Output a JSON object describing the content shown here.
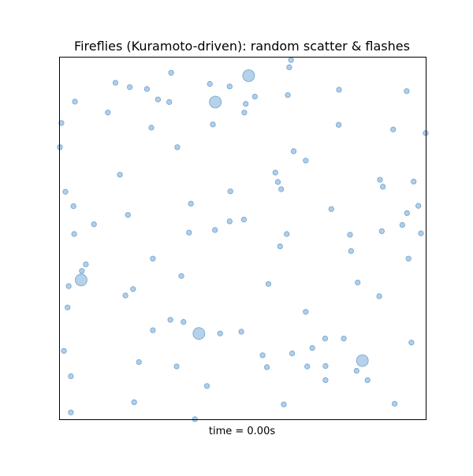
{
  "chart_data": {
    "type": "scatter",
    "title": "Fireflies (Kuramoto-driven): random scatter & flashes",
    "xlabel": "time = 0.00s",
    "ylabel": "",
    "xlim": [
      0,
      1
    ],
    "ylim": [
      0,
      1
    ],
    "grid": false,
    "ticks": false,
    "colors": {
      "marker": "#a9c9e6",
      "edge": "#6fa3d0"
    },
    "series": [
      {
        "points": [
          {
            "x": 0.632,
            "y": 0.993
          },
          {
            "x": 0.627,
            "y": 0.973
          },
          {
            "x": 0.516,
            "y": 0.95,
            "flash": true
          },
          {
            "x": 0.304,
            "y": 0.958
          },
          {
            "x": 0.152,
            "y": 0.93
          },
          {
            "x": 0.191,
            "y": 0.918
          },
          {
            "x": 0.238,
            "y": 0.913
          },
          {
            "x": 0.41,
            "y": 0.927
          },
          {
            "x": 0.464,
            "y": 0.92
          },
          {
            "x": 0.763,
            "y": 0.911
          },
          {
            "x": 0.948,
            "y": 0.907
          },
          {
            "x": 0.041,
            "y": 0.878
          },
          {
            "x": 0.533,
            "y": 0.892
          },
          {
            "x": 0.623,
            "y": 0.896
          },
          {
            "x": 0.268,
            "y": 0.884
          },
          {
            "x": 0.299,
            "y": 0.877
          },
          {
            "x": 0.425,
            "y": 0.877,
            "flash": true
          },
          {
            "x": 0.508,
            "y": 0.872
          },
          {
            "x": 0.131,
            "y": 0.848
          },
          {
            "x": 0.504,
            "y": 0.848
          },
          {
            "x": 0.004,
            "y": 0.819
          },
          {
            "x": 0.25,
            "y": 0.806
          },
          {
            "x": 0.418,
            "y": 0.815
          },
          {
            "x": 0.762,
            "y": 0.814
          },
          {
            "x": 0.911,
            "y": 0.801
          },
          {
            "x": 1.0,
            "y": 0.791
          },
          {
            "x": 0.0,
            "y": 0.752
          },
          {
            "x": 0.321,
            "y": 0.752
          },
          {
            "x": 0.639,
            "y": 0.741
          },
          {
            "x": 0.672,
            "y": 0.715
          },
          {
            "x": 0.164,
            "y": 0.676
          },
          {
            "x": 0.589,
            "y": 0.682
          },
          {
            "x": 0.596,
            "y": 0.656
          },
          {
            "x": 0.605,
            "y": 0.636
          },
          {
            "x": 0.875,
            "y": 0.662
          },
          {
            "x": 0.883,
            "y": 0.643
          },
          {
            "x": 0.967,
            "y": 0.657
          },
          {
            "x": 0.015,
            "y": 0.629
          },
          {
            "x": 0.466,
            "y": 0.63
          },
          {
            "x": 0.037,
            "y": 0.589
          },
          {
            "x": 0.358,
            "y": 0.596
          },
          {
            "x": 0.742,
            "y": 0.581
          },
          {
            "x": 0.98,
            "y": 0.59
          },
          {
            "x": 0.186,
            "y": 0.565
          },
          {
            "x": 0.949,
            "y": 0.57
          },
          {
            "x": 0.093,
            "y": 0.539
          },
          {
            "x": 0.464,
            "y": 0.547
          },
          {
            "x": 0.503,
            "y": 0.552
          },
          {
            "x": 0.936,
            "y": 0.537
          },
          {
            "x": 0.424,
            "y": 0.523
          },
          {
            "x": 0.353,
            "y": 0.516
          },
          {
            "x": 0.039,
            "y": 0.512
          },
          {
            "x": 0.62,
            "y": 0.512
          },
          {
            "x": 0.88,
            "y": 0.52
          },
          {
            "x": 0.987,
            "y": 0.514
          },
          {
            "x": 0.793,
            "y": 0.51
          },
          {
            "x": 0.602,
            "y": 0.478
          },
          {
            "x": 0.796,
            "y": 0.465
          },
          {
            "x": 0.953,
            "y": 0.444
          },
          {
            "x": 0.071,
            "y": 0.428
          },
          {
            "x": 0.254,
            "y": 0.444
          },
          {
            "x": 0.06,
            "y": 0.41
          },
          {
            "x": 0.058,
            "y": 0.385,
            "flash": true
          },
          {
            "x": 0.332,
            "y": 0.396
          },
          {
            "x": 0.57,
            "y": 0.374
          },
          {
            "x": 0.814,
            "y": 0.378
          },
          {
            "x": 0.024,
            "y": 0.368
          },
          {
            "x": 0.2,
            "y": 0.36
          },
          {
            "x": 0.179,
            "y": 0.342
          },
          {
            "x": 0.873,
            "y": 0.34
          },
          {
            "x": 0.021,
            "y": 0.309
          },
          {
            "x": 0.672,
            "y": 0.297
          },
          {
            "x": 0.302,
            "y": 0.275
          },
          {
            "x": 0.338,
            "y": 0.269
          },
          {
            "x": 0.254,
            "y": 0.246
          },
          {
            "x": 0.38,
            "y": 0.237,
            "flash": true
          },
          {
            "x": 0.438,
            "y": 0.237
          },
          {
            "x": 0.496,
            "y": 0.242
          },
          {
            "x": 0.725,
            "y": 0.223
          },
          {
            "x": 0.776,
            "y": 0.223
          },
          {
            "x": 0.69,
            "y": 0.197
          },
          {
            "x": 0.961,
            "y": 0.212
          },
          {
            "x": 0.011,
            "y": 0.189
          },
          {
            "x": 0.554,
            "y": 0.177
          },
          {
            "x": 0.635,
            "y": 0.182
          },
          {
            "x": 0.216,
            "y": 0.158
          },
          {
            "x": 0.676,
            "y": 0.146
          },
          {
            "x": 0.827,
            "y": 0.162,
            "flash": true
          },
          {
            "x": 0.319,
            "y": 0.146
          },
          {
            "x": 0.566,
            "y": 0.144
          },
          {
            "x": 0.726,
            "y": 0.147
          },
          {
            "x": 0.811,
            "y": 0.134
          },
          {
            "x": 0.03,
            "y": 0.119
          },
          {
            "x": 0.726,
            "y": 0.108
          },
          {
            "x": 0.841,
            "y": 0.108
          },
          {
            "x": 0.402,
            "y": 0.092
          },
          {
            "x": 0.203,
            "y": 0.047
          },
          {
            "x": 0.915,
            "y": 0.043
          },
          {
            "x": 0.612,
            "y": 0.041
          },
          {
            "x": 0.03,
            "y": 0.019
          },
          {
            "x": 0.369,
            "y": 0.0
          }
        ]
      }
    ]
  }
}
